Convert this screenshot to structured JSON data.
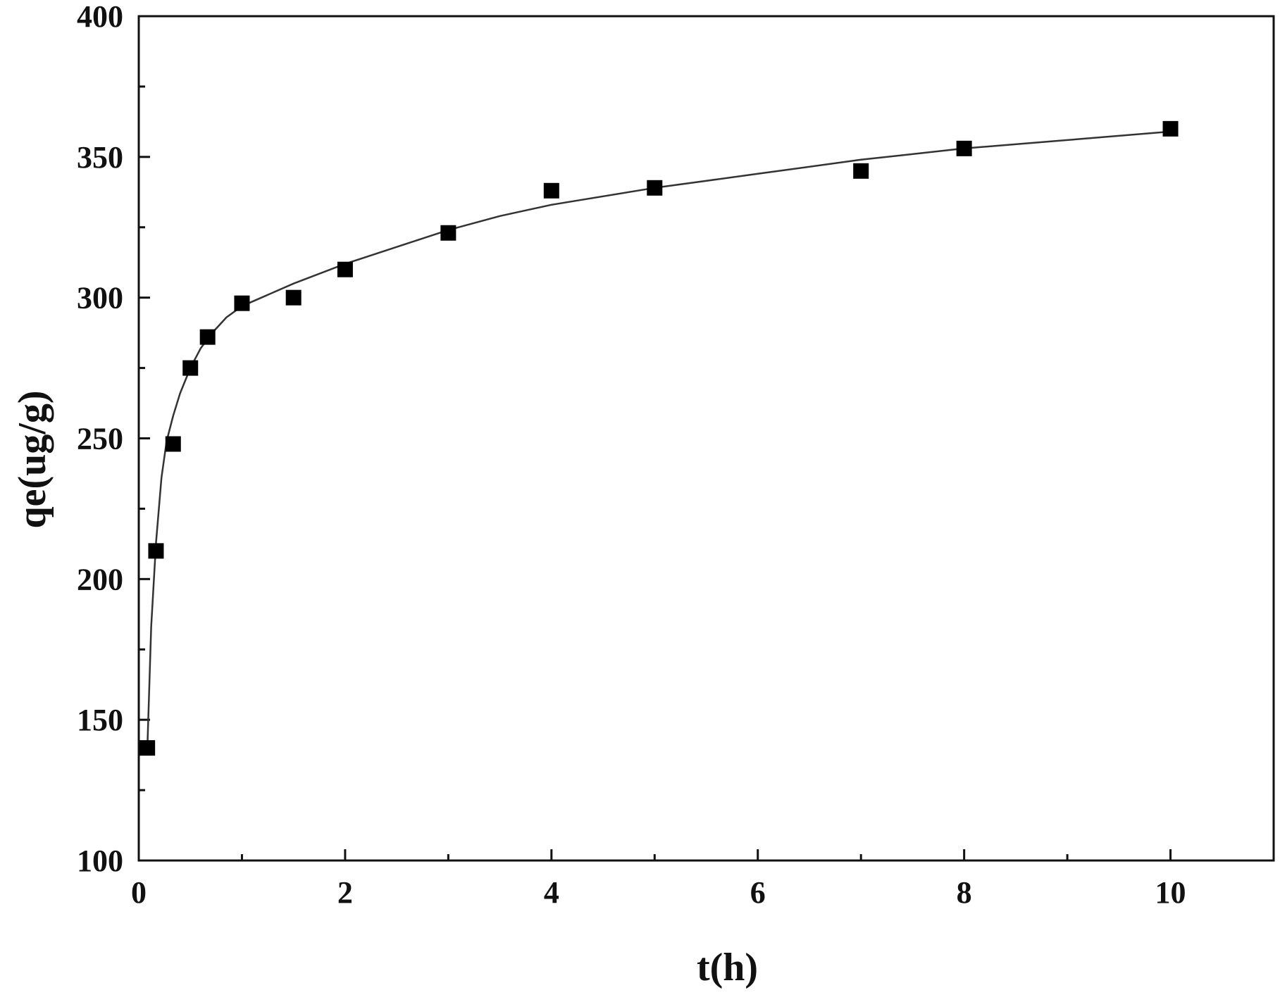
{
  "chart_data": {
    "type": "scatter",
    "title": "",
    "xlabel": "t(h)",
    "ylabel": "qe(ug/g)",
    "xlim": [
      0,
      11
    ],
    "ylim": [
      100,
      400
    ],
    "x_ticks": [
      0,
      2,
      4,
      6,
      8,
      10
    ],
    "y_ticks": [
      100,
      150,
      200,
      250,
      300,
      350,
      400
    ],
    "x_minor_ticks": [
      1,
      3,
      5,
      7,
      9,
      11
    ],
    "y_minor_ticks": [
      125,
      175,
      225,
      275,
      325,
      375
    ],
    "grid": false,
    "marker": "filled-square",
    "marker_color": "#000000",
    "line_color": "#333333",
    "series": [
      {
        "x": [
          0.083,
          0.167,
          0.333,
          0.5,
          0.667,
          1,
          1.5,
          2,
          3,
          4,
          5,
          7,
          8,
          10
        ],
        "y": [
          140,
          210,
          248,
          275,
          286,
          298,
          300,
          310,
          323,
          338,
          339,
          345,
          353,
          360
        ]
      }
    ],
    "fit_curve": {
      "x": [
        0.083,
        0.12,
        0.167,
        0.22,
        0.27,
        0.333,
        0.4,
        0.5,
        0.6,
        0.7,
        0.85,
        1,
        1.5,
        2,
        2.5,
        3,
        3.5,
        4,
        5,
        6,
        7,
        8,
        9,
        10
      ],
      "y": [
        140,
        183,
        213,
        236,
        249,
        258,
        266,
        275,
        282,
        287,
        293,
        297,
        305,
        312,
        318,
        324,
        329,
        333,
        339,
        344,
        349,
        353,
        356,
        359
      ]
    }
  }
}
